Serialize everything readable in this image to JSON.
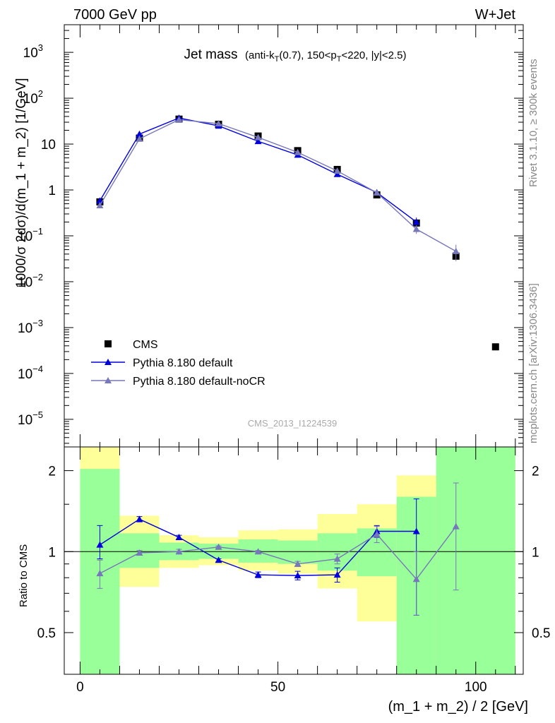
{
  "header": {
    "left": "7000 GeV pp",
    "right": "W+Jet",
    "title_main": "Jet mass",
    "title_detail_parts": [
      "(anti-k",
      "T",
      "(0.7), 150<p",
      "T",
      "<220, |y|<2.5)"
    ]
  },
  "side_labels": {
    "rivet": "Rivet 3.1.10, ≥ 300k events",
    "ref": "mcplots.cern.ch [arXiv:1306.3436]"
  },
  "analysis_label": "CMS_2013_I1224539",
  "chart_data": [
    {
      "type": "scatter",
      "panel": "main",
      "ylabel": "1000/σ 2dσ)/d(m_1 + m_2) [1/GeV]",
      "log_y": true,
      "xlim": [
        -4,
        112
      ],
      "ylim": [
        2.5e-06,
        4000
      ],
      "y_ticks": [
        {
          "value": 1e-05,
          "label": "10",
          "exp": "−5"
        },
        {
          "value": 0.0001,
          "label": "10",
          "exp": "−4"
        },
        {
          "value": 0.001,
          "label": "10",
          "exp": "−3"
        },
        {
          "value": 0.01,
          "label": "10",
          "exp": "−2"
        },
        {
          "value": 0.1,
          "label": "10",
          "exp": "−1"
        },
        {
          "value": 1,
          "label": "1",
          "exp": ""
        },
        {
          "value": 10,
          "label": "10",
          "exp": ""
        },
        {
          "value": 100,
          "label": "10",
          "exp": "2"
        },
        {
          "value": 1000,
          "label": "10",
          "exp": "3"
        }
      ],
      "legend_position": "middle-left",
      "series": [
        {
          "name": "CMS",
          "color": "#000000",
          "marker": "square",
          "x": [
            5,
            15,
            25,
            35,
            45,
            55,
            65,
            75,
            85,
            95,
            105
          ],
          "y": [
            0.55,
            13.5,
            35,
            27,
            15,
            7.2,
            2.8,
            0.78,
            0.19,
            0.036,
            0.00038
          ]
        },
        {
          "name": "Pythia 8.180 default",
          "color": "#0000dd",
          "marker": "triangle",
          "x": [
            5,
            15,
            25,
            35,
            45,
            55,
            65,
            75,
            85
          ],
          "y": [
            0.58,
            16.5,
            37,
            25,
            11.5,
            5.8,
            2.2,
            0.88,
            0.2
          ],
          "err": [
            0.06,
            0.5,
            1,
            0.8,
            0.4,
            0.2,
            0.08,
            0.07,
            0.05
          ]
        },
        {
          "name": "Pythia 8.180 default-noCR",
          "color": "#7777bb",
          "marker": "triangle",
          "x": [
            5,
            15,
            25,
            35,
            45,
            55,
            65,
            75,
            85,
            95
          ],
          "y": [
            0.46,
            13,
            34,
            28,
            14,
            6.6,
            2.6,
            0.87,
            0.14,
            0.046
          ],
          "err": [
            0.05,
            0.5,
            1,
            0.8,
            0.4,
            0.2,
            0.08,
            0.07,
            0.03,
            0.018
          ]
        }
      ]
    },
    {
      "type": "scatter",
      "panel": "ratio",
      "ylabel": "Ratio to CMS",
      "xlabel": "(m_1 + m_2) / 2 [GeV]",
      "xlim": [
        -4,
        112
      ],
      "ylim": [
        0.35,
        2.45
      ],
      "x_ticks": [
        0,
        50,
        100
      ],
      "y_ticks": [
        0.5,
        1,
        2
      ],
      "reference_line": 1,
      "bins": [
        0,
        10,
        20,
        30,
        40,
        50,
        60,
        70,
        80,
        90,
        110
      ],
      "band_inner": [
        [
          0.35,
          2.03
        ],
        [
          0.87,
          1.17
        ],
        [
          0.93,
          1.08
        ],
        [
          0.94,
          1.07
        ],
        [
          0.91,
          1.11
        ],
        [
          0.9,
          1.1
        ],
        [
          0.85,
          1.17
        ],
        [
          0.81,
          1.22
        ],
        [
          0.35,
          1.6
        ],
        [
          0.35,
          2.45
        ]
      ],
      "band_outer": [
        [
          0.35,
          2.45
        ],
        [
          0.74,
          1.36
        ],
        [
          0.87,
          1.15
        ],
        [
          0.89,
          1.13
        ],
        [
          0.85,
          1.2
        ],
        [
          0.83,
          1.21
        ],
        [
          0.73,
          1.38
        ],
        [
          0.55,
          1.5
        ],
        [
          0.35,
          1.92
        ],
        [
          0.35,
          2.45
        ]
      ],
      "series": [
        {
          "name": "Pythia 8.180 default",
          "color": "#0000dd",
          "x": [
            5,
            15,
            25,
            35,
            45,
            55,
            65,
            75,
            85
          ],
          "y": [
            1.06,
            1.32,
            1.13,
            0.93,
            0.82,
            0.815,
            0.82,
            1.19,
            1.19
          ],
          "err_lo": [
            0.12,
            0.03,
            0.02,
            0.01,
            0.02,
            0.03,
            0.05,
            0.06,
            0.61
          ],
          "err_hi": [
            0.19,
            0.03,
            0.02,
            0.01,
            0.02,
            0.03,
            0.05,
            0.06,
            0.38
          ]
        },
        {
          "name": "Pythia 8.180 default-noCR",
          "color": "#7777bb",
          "x": [
            5,
            15,
            25,
            35,
            45,
            55,
            65,
            75,
            85,
            95
          ],
          "y": [
            0.83,
            0.99,
            1.0,
            1.04,
            1.0,
            0.9,
            0.94,
            1.16,
            0.79,
            1.24
          ],
          "err_lo": [
            0.1,
            0.02,
            0.02,
            0.01,
            0.01,
            0.02,
            0.04,
            0.08,
            0.21,
            0.52
          ],
          "err_hi": [
            0.1,
            0.02,
            0.02,
            0.01,
            0.01,
            0.02,
            0.04,
            0.08,
            0.21,
            0.56
          ]
        }
      ]
    }
  ]
}
